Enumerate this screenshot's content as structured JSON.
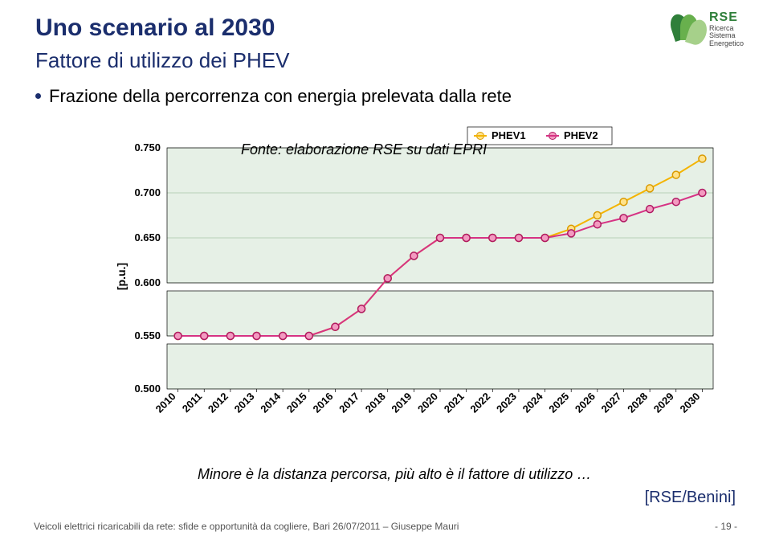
{
  "title": {
    "text": "Uno scenario al 2030",
    "color": "#1b2e6d",
    "fontsize": 30
  },
  "subtitle": {
    "text": "Fattore di utilizzo dei PHEV",
    "color": "#1b2e6d",
    "fontsize": 26
  },
  "bullet": {
    "text": "Frazione della percorrenza con energia prelevata dalla rete",
    "color": "#000000",
    "fontsize": 22
  },
  "logo": {
    "letters": "RSE",
    "sub1": "Ricerca",
    "sub2": "Sistema",
    "sub3": "Energetico",
    "leaf_colors": [
      "#2f7f3a",
      "#68b04d",
      "#a6d08a"
    ]
  },
  "chart": {
    "type": "line",
    "background_color": "#e6f0e6",
    "grid_color": "#a9c4a9",
    "axis_color": "#000000",
    "y_axis_title": "[p.u.]",
    "x_categories": [
      "2010",
      "2011",
      "2012",
      "2013",
      "2014",
      "2015",
      "2016",
      "2017",
      "2018",
      "2019",
      "2020",
      "2021",
      "2022",
      "2023",
      "2024",
      "2025",
      "2026",
      "2027",
      "2028",
      "2029",
      "2030"
    ],
    "ylim": [
      0.5,
      0.75
    ],
    "yticks": [
      "0.500",
      "0.550",
      "0.600",
      "0.650",
      "0.700",
      "0.750"
    ],
    "ytick_values": [
      0.5,
      0.55,
      0.6,
      0.65,
      0.7,
      0.75
    ],
    "x_label_rotation": -45,
    "tick_fontsize": 13,
    "panel_gap": true,
    "series": [
      {
        "name": "PHEV1",
        "color": "#f4b400",
        "marker_fill": "#ffe28a",
        "marker_stroke": "#d99a00",
        "values": [
          0.55,
          0.55,
          0.55,
          0.55,
          0.55,
          0.55,
          0.56,
          0.58,
          0.605,
          0.63,
          0.65,
          0.65,
          0.65,
          0.65,
          0.65,
          0.66,
          0.675,
          0.69,
          0.705,
          0.72,
          0.738
        ]
      },
      {
        "name": "PHEV2",
        "color": "#d63384",
        "marker_fill": "#f39ac0",
        "marker_stroke": "#b01a63",
        "values": [
          0.55,
          0.55,
          0.55,
          0.55,
          0.55,
          0.55,
          0.56,
          0.58,
          0.605,
          0.63,
          0.65,
          0.65,
          0.65,
          0.65,
          0.65,
          0.655,
          0.665,
          0.672,
          0.682,
          0.69,
          0.7
        ]
      }
    ],
    "legend": {
      "x": 0.6,
      "y_above": true,
      "items": [
        "PHEV1",
        "PHEV2"
      ],
      "marker_colors": [
        "#f4b400",
        "#d63384"
      ]
    },
    "line_width": 2,
    "marker_radius": 4.5
  },
  "source_note": "Fonte: elaborazione RSE su dati EPRI",
  "caption": "Minore è la distanza percorsa, più alto è il fattore di utilizzo …",
  "attribution": {
    "text": "[RSE/Benini]",
    "color": "#1b2e6d"
  },
  "footer": {
    "left": "Veicoli elettrici ricaricabili da rete: sfide e opportunità da cogliere, Bari 26/07/2011 – Giuseppe Mauri",
    "right": "- 19 -"
  }
}
